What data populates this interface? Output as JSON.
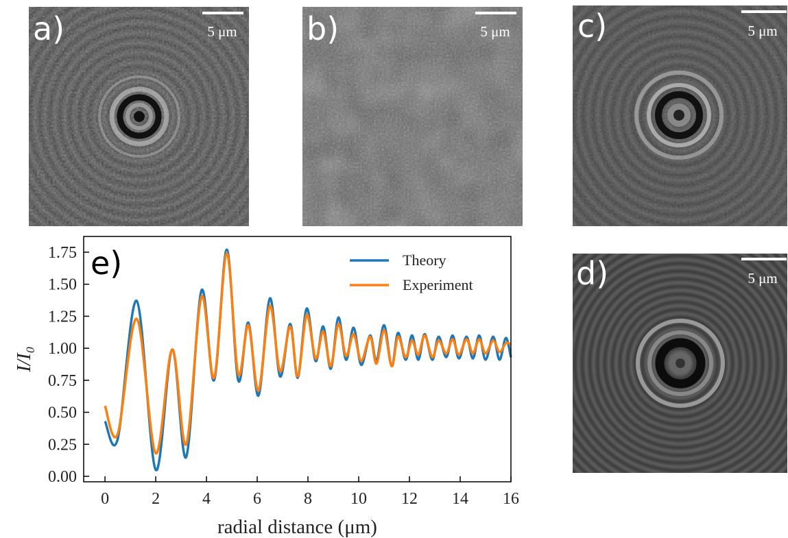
{
  "images": [
    {
      "label": "a)",
      "scale": "5 μm"
    },
    {
      "label": "b)",
      "scale": "5 μm"
    },
    {
      "label": "c)",
      "scale": "5 μm"
    },
    {
      "label": "d)",
      "scale": "5 μm"
    }
  ],
  "chart_data": {
    "type": "line",
    "label": "e)",
    "x_label": "radial distance (μm)",
    "y_label": "I/I₀",
    "x": [
      0,
      0.5,
      1.25,
      2.0,
      2.65,
      3.2,
      3.8,
      4.3,
      4.8,
      5.25,
      5.65,
      6.05,
      6.5,
      6.9,
      7.3,
      7.6,
      7.95,
      8.3,
      8.6,
      8.9,
      9.2,
      9.5,
      9.8,
      10.1,
      10.45,
      10.7,
      11.0,
      11.3,
      11.55,
      11.85,
      12.1,
      12.35,
      12.6,
      12.9,
      13.15,
      13.45,
      13.7,
      13.95,
      14.25,
      14.5,
      14.75,
      15.0,
      15.3,
      15.55,
      15.8,
      16.0
    ],
    "series": [
      {
        "name": "Theory",
        "color": "#1f77b4",
        "values": [
          0.43,
          0.29,
          1.37,
          0.05,
          0.99,
          0.15,
          1.45,
          0.75,
          1.77,
          0.75,
          1.2,
          0.63,
          1.39,
          0.78,
          1.19,
          0.77,
          1.31,
          0.9,
          1.17,
          0.84,
          1.24,
          0.91,
          1.16,
          0.87,
          1.1,
          0.9,
          1.18,
          0.86,
          1.12,
          0.91,
          1.1,
          0.91,
          1.11,
          0.91,
          1.09,
          0.93,
          1.1,
          0.92,
          1.09,
          0.92,
          1.1,
          0.91,
          1.09,
          0.91,
          1.08,
          0.93
        ]
      },
      {
        "name": "Experiment",
        "color": "#ff7f0e",
        "values": [
          0.55,
          0.33,
          1.23,
          0.18,
          0.99,
          0.25,
          1.4,
          0.77,
          1.74,
          0.8,
          1.18,
          0.67,
          1.33,
          0.82,
          1.17,
          0.78,
          1.26,
          0.92,
          1.13,
          0.86,
          1.19,
          0.94,
          1.11,
          0.9,
          1.09,
          0.88,
          1.14,
          0.86,
          1.09,
          0.93,
          1.06,
          0.95,
          1.1,
          0.93,
          1.06,
          0.96,
          1.07,
          0.95,
          1.07,
          0.96,
          1.07,
          0.96,
          1.06,
          0.97,
          1.04,
          1.03
        ]
      }
    ],
    "xlim": [
      -0.84,
      16
    ],
    "xticks": [
      0,
      2,
      4,
      6,
      8,
      10,
      12,
      14,
      16
    ],
    "ylim": [
      -0.043,
      1.873
    ],
    "yticks": [
      {
        "value": 0,
        "label": "0.00"
      },
      {
        "value": 0.25,
        "label": "0.25"
      },
      {
        "value": 0.5,
        "label": "0.50"
      },
      {
        "value": 0.75,
        "label": "0.75"
      },
      {
        "value": 1,
        "label": "1.00"
      },
      {
        "value": 1.25,
        "label": "1.25"
      },
      {
        "value": 1.5,
        "label": "1.50"
      },
      {
        "value": 1.75,
        "label": "1.75"
      }
    ],
    "legend": "upper right"
  }
}
